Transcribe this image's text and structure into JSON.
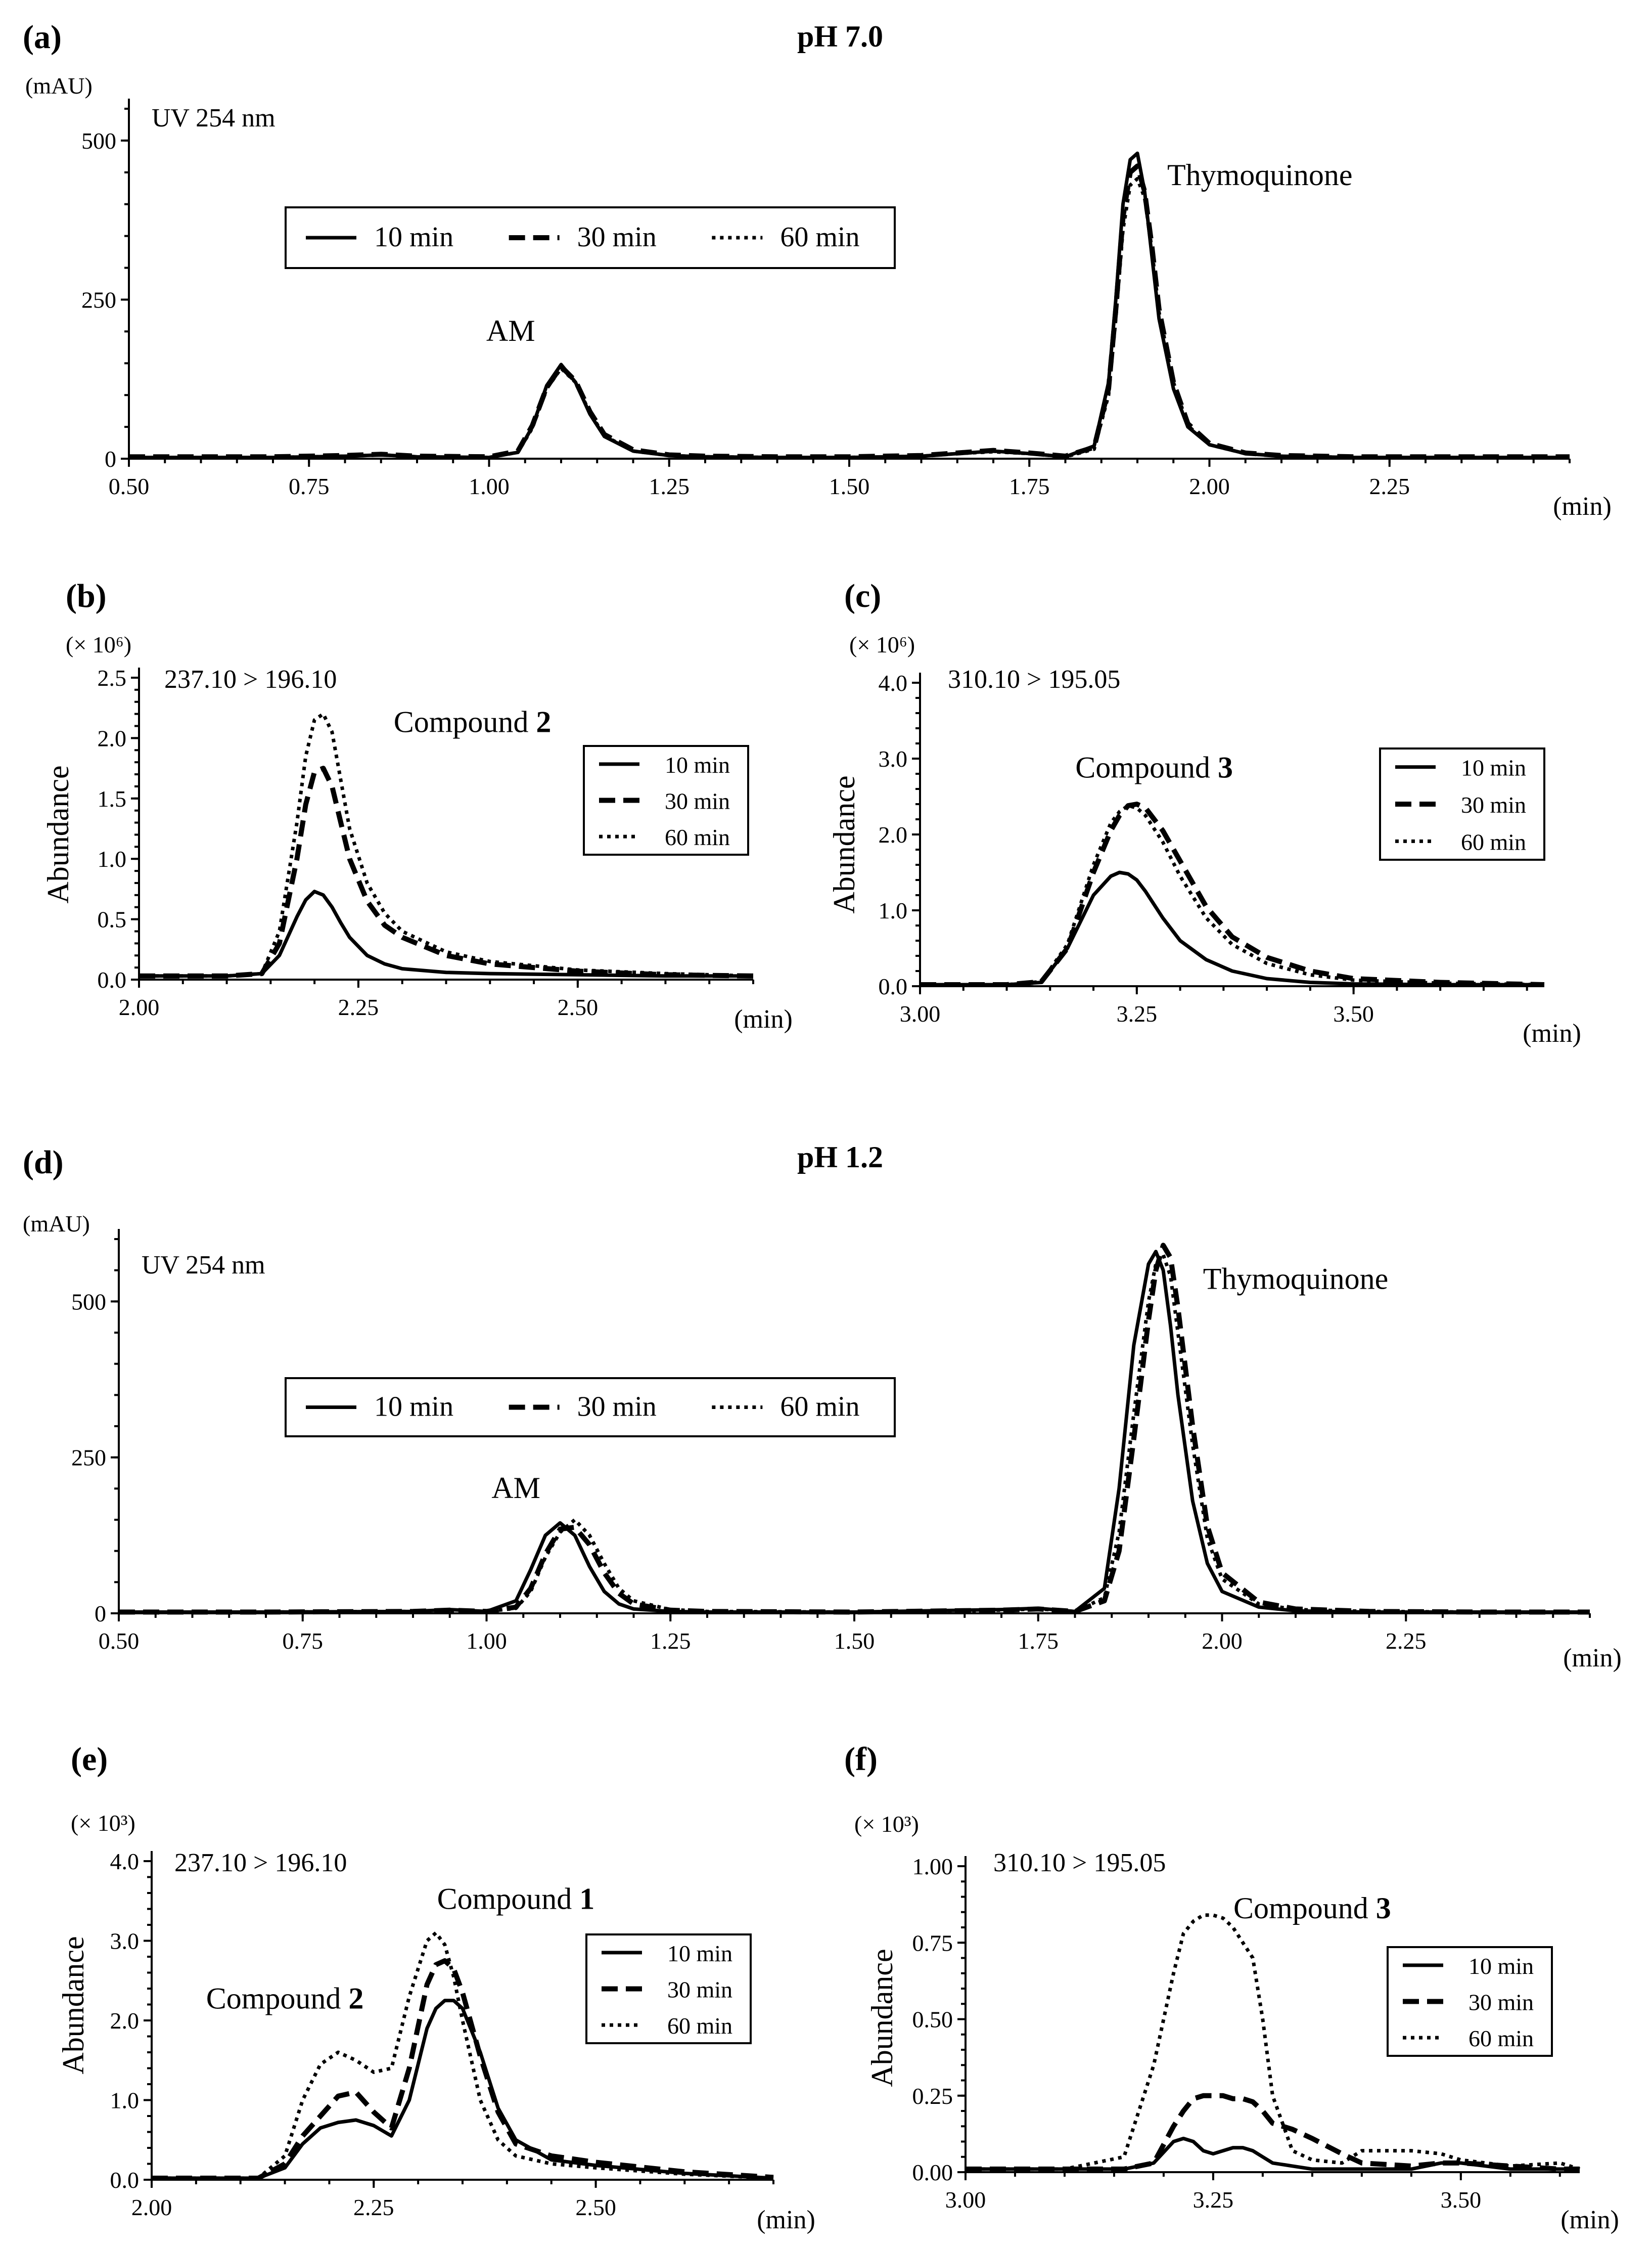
{
  "figure": {
    "section_titles": [
      "pH 7.0",
      "pH 1.2"
    ]
  },
  "chart_data": [
    {
      "id": "a",
      "panel_label": "(a)",
      "type": "line",
      "title": "pH 7.0",
      "annotation": "UV 254 nm",
      "y_unit": "(mAU)",
      "xlabel": "(min)",
      "ylabel": "",
      "xlim": [
        0.5,
        2.5
      ],
      "ylim": [
        0,
        550
      ],
      "xticks": [
        0.5,
        0.75,
        1.0,
        1.25,
        1.5,
        1.75,
        2.0,
        2.25
      ],
      "xtick_labels": [
        "0.50",
        "0.75",
        "1.00",
        "1.25",
        "1.50",
        "1.75",
        "2.00",
        "2.25"
      ],
      "yticks": [
        0,
        250,
        500
      ],
      "ytick_labels": [
        "0",
        "250",
        "500"
      ],
      "legend": [
        "10 min",
        "30 min",
        "60 min"
      ],
      "legend_layout": "horizontal",
      "peak_labels": [
        {
          "text": "AM",
          "x": 1.03,
          "y": 185
        },
        {
          "text": "Thymoquinone",
          "x": 2.07,
          "y": 430
        }
      ],
      "x": [
        0.5,
        0.6,
        0.7,
        0.8,
        0.85,
        0.9,
        1.0,
        1.04,
        1.06,
        1.08,
        1.1,
        1.12,
        1.14,
        1.16,
        1.2,
        1.25,
        1.3,
        1.4,
        1.5,
        1.6,
        1.65,
        1.7,
        1.75,
        1.8,
        1.84,
        1.86,
        1.87,
        1.88,
        1.89,
        1.9,
        1.91,
        1.92,
        1.93,
        1.95,
        1.97,
        2.0,
        2.05,
        2.1,
        2.2,
        2.3,
        2.4,
        2.5
      ],
      "series": [
        {
          "name": "10 min",
          "values": [
            2,
            2,
            2,
            4,
            6,
            3,
            2,
            10,
            50,
            115,
            148,
            120,
            70,
            35,
            12,
            5,
            3,
            2,
            2,
            4,
            8,
            12,
            8,
            3,
            20,
            120,
            250,
            400,
            470,
            480,
            420,
            320,
            220,
            110,
            50,
            22,
            8,
            4,
            2,
            2,
            2,
            2
          ]
        },
        {
          "name": "30 min",
          "values": [
            3,
            3,
            3,
            5,
            7,
            4,
            3,
            12,
            52,
            112,
            145,
            122,
            74,
            38,
            14,
            6,
            4,
            3,
            3,
            5,
            9,
            13,
            9,
            4,
            18,
            110,
            235,
            380,
            450,
            460,
            420,
            335,
            235,
            120,
            55,
            24,
            9,
            5,
            3,
            3,
            3,
            3
          ]
        },
        {
          "name": "60 min",
          "values": [
            2,
            2,
            2,
            4,
            6,
            3,
            2,
            10,
            48,
            110,
            142,
            120,
            72,
            36,
            12,
            5,
            3,
            2,
            2,
            4,
            8,
            11,
            8,
            3,
            15,
            100,
            220,
            360,
            430,
            440,
            410,
            330,
            230,
            120,
            52,
            22,
            8,
            4,
            2,
            2,
            2,
            2
          ]
        }
      ]
    },
    {
      "id": "b",
      "panel_label": "(b)",
      "type": "line",
      "title": "",
      "annotation": "237.10 > 196.10",
      "y_unit": "(× 10⁶)",
      "xlabel": "(min)",
      "ylabel": "Abundance",
      "xlim": [
        2.0,
        2.7
      ],
      "ylim": [
        0,
        2.5
      ],
      "xticks": [
        2.0,
        2.25,
        2.5
      ],
      "xtick_labels": [
        "2.00",
        "2.25",
        "2.50"
      ],
      "yticks": [
        0,
        0.5,
        1.0,
        1.5,
        2.0,
        2.5
      ],
      "ytick_labels": [
        "0.0",
        "0.5",
        "1.0",
        "1.5",
        "2.0",
        "2.5"
      ],
      "legend": [
        "10 min",
        "30 min",
        "60 min"
      ],
      "legend_layout": "vertical",
      "peak_labels": [
        {
          "text": "Compound ",
          "bold": "2",
          "x": 2.38,
          "y": 2.05
        }
      ],
      "x": [
        2.0,
        2.1,
        2.14,
        2.16,
        2.18,
        2.19,
        2.2,
        2.21,
        2.22,
        2.23,
        2.24,
        2.26,
        2.28,
        2.3,
        2.35,
        2.4,
        2.5,
        2.6,
        2.7
      ],
      "series": [
        {
          "name": "10 min",
          "values": [
            0.03,
            0.03,
            0.05,
            0.2,
            0.52,
            0.66,
            0.73,
            0.7,
            0.6,
            0.47,
            0.35,
            0.2,
            0.13,
            0.09,
            0.06,
            0.05,
            0.04,
            0.03,
            0.03
          ]
        },
        {
          "name": "30 min",
          "values": [
            0.03,
            0.03,
            0.05,
            0.3,
            1.0,
            1.45,
            1.72,
            1.75,
            1.6,
            1.3,
            1.0,
            0.65,
            0.45,
            0.35,
            0.2,
            0.13,
            0.07,
            0.04,
            0.03
          ]
        },
        {
          "name": "60 min",
          "values": [
            0.03,
            0.03,
            0.05,
            0.4,
            1.3,
            1.85,
            2.15,
            2.2,
            2.05,
            1.65,
            1.25,
            0.8,
            0.55,
            0.4,
            0.23,
            0.15,
            0.08,
            0.05,
            0.03
          ]
        }
      ]
    },
    {
      "id": "c",
      "panel_label": "(c)",
      "type": "line",
      "title": "",
      "annotation": "310.10 > 195.05",
      "y_unit": "(× 10⁶)",
      "xlabel": "(min)",
      "ylabel": "Abundance",
      "xlim": [
        3.0,
        3.72
      ],
      "ylim": [
        0,
        4.0
      ],
      "xticks": [
        3.0,
        3.25,
        3.5
      ],
      "xtick_labels": [
        "3.00",
        "3.25",
        "3.50"
      ],
      "yticks": [
        0,
        1.0,
        2.0,
        3.0,
        4.0
      ],
      "ytick_labels": [
        "0.0",
        "1.0",
        "2.0",
        "3.0",
        "4.0"
      ],
      "legend": [
        "10 min",
        "30 min",
        "60 min"
      ],
      "legend_layout": "vertical",
      "peak_labels": [
        {
          "text": "Compound ",
          "bold": "3",
          "x": 3.27,
          "y": 2.75
        }
      ],
      "x": [
        3.0,
        3.1,
        3.14,
        3.17,
        3.2,
        3.22,
        3.23,
        3.24,
        3.25,
        3.26,
        3.28,
        3.3,
        3.33,
        3.36,
        3.4,
        3.45,
        3.5,
        3.6,
        3.72
      ],
      "series": [
        {
          "name": "10 min",
          "values": [
            0.02,
            0.02,
            0.05,
            0.5,
            1.2,
            1.45,
            1.5,
            1.48,
            1.4,
            1.25,
            0.9,
            0.6,
            0.35,
            0.2,
            0.1,
            0.05,
            0.03,
            0.02,
            0.02
          ]
        },
        {
          "name": "30 min",
          "values": [
            0.02,
            0.02,
            0.06,
            0.5,
            1.5,
            2.05,
            2.25,
            2.38,
            2.4,
            2.35,
            2.05,
            1.65,
            1.05,
            0.65,
            0.38,
            0.2,
            0.1,
            0.05,
            0.02
          ]
        },
        {
          "name": "60 min",
          "values": [
            0.02,
            0.02,
            0.06,
            0.55,
            1.6,
            2.15,
            2.3,
            2.38,
            2.35,
            2.25,
            1.9,
            1.45,
            0.9,
            0.55,
            0.3,
            0.15,
            0.08,
            0.04,
            0.02
          ]
        }
      ]
    },
    {
      "id": "d",
      "panel_label": "(d)",
      "type": "line",
      "title": "pH 1.2",
      "annotation": "UV 254 nm",
      "y_unit": "(mAU)",
      "xlabel": "(min)",
      "ylabel": "",
      "xlim": [
        0.5,
        2.5
      ],
      "ylim": [
        0,
        600
      ],
      "xticks": [
        0.5,
        0.75,
        1.0,
        1.25,
        1.5,
        1.75,
        2.0,
        2.25
      ],
      "xtick_labels": [
        "0.50",
        "0.75",
        "1.00",
        "1.25",
        "1.50",
        "1.75",
        "2.00",
        "2.25"
      ],
      "yticks": [
        0,
        250,
        500
      ],
      "ytick_labels": [
        "0",
        "250",
        "500"
      ],
      "legend": [
        "10 min",
        "30 min",
        "60 min"
      ],
      "legend_layout": "horizontal",
      "peak_labels": [
        {
          "text": "AM",
          "x": 1.04,
          "y": 185
        },
        {
          "text": "Thymoquinone",
          "x": 2.1,
          "y": 520
        }
      ],
      "x": [
        0.5,
        0.7,
        0.9,
        0.95,
        1.0,
        1.04,
        1.06,
        1.08,
        1.1,
        1.12,
        1.14,
        1.16,
        1.18,
        1.2,
        1.25,
        1.3,
        1.5,
        1.7,
        1.75,
        1.8,
        1.84,
        1.86,
        1.88,
        1.9,
        1.91,
        1.92,
        1.93,
        1.94,
        1.96,
        1.98,
        2.0,
        2.05,
        2.1,
        2.2,
        2.35,
        2.5
      ],
      "series": [
        {
          "name": "10 min",
          "values": [
            2,
            2,
            3,
            6,
            3,
            20,
            70,
            125,
            145,
            125,
            75,
            35,
            15,
            7,
            3,
            2,
            2,
            6,
            8,
            3,
            40,
            200,
            430,
            560,
            580,
            550,
            460,
            350,
            180,
            80,
            35,
            10,
            4,
            2,
            2,
            2
          ]
        },
        {
          "name": "30 min",
          "values": [
            2,
            2,
            3,
            5,
            3,
            10,
            40,
            95,
            135,
            138,
            110,
            65,
            32,
            15,
            5,
            3,
            2,
            5,
            7,
            3,
            20,
            100,
            280,
            470,
            550,
            590,
            570,
            490,
            300,
            140,
            65,
            18,
            7,
            3,
            2,
            2
          ]
        },
        {
          "name": "60 min",
          "values": [
            2,
            2,
            3,
            4,
            3,
            8,
            35,
            90,
            130,
            150,
            125,
            80,
            40,
            20,
            6,
            3,
            2,
            5,
            7,
            3,
            25,
            130,
            320,
            500,
            560,
            575,
            540,
            450,
            270,
            120,
            55,
            15,
            6,
            3,
            2,
            2
          ]
        }
      ]
    },
    {
      "id": "e",
      "panel_label": "(e)",
      "type": "line",
      "title": "",
      "annotation": "237.10 > 196.10",
      "y_unit": "(× 10³)",
      "xlabel": "(min)",
      "ylabel": "Abundance",
      "xlim": [
        2.0,
        2.7
      ],
      "ylim": [
        0,
        4.0
      ],
      "xticks": [
        2.0,
        2.25,
        2.5
      ],
      "xtick_labels": [
        "2.00",
        "2.25",
        "2.50"
      ],
      "yticks": [
        0,
        1.0,
        2.0,
        3.0,
        4.0
      ],
      "ytick_labels": [
        "0.0",
        "1.0",
        "2.0",
        "3.0",
        "4.0"
      ],
      "legend": [
        "10 min",
        "30 min",
        "60 min"
      ],
      "legend_layout": "vertical",
      "peak_labels": [
        {
          "text": "Compound ",
          "bold": "1",
          "x": 2.41,
          "y": 3.4
        },
        {
          "text": "Compound ",
          "bold": "2",
          "x": 2.15,
          "y": 2.15
        }
      ],
      "x": [
        2.0,
        2.12,
        2.15,
        2.17,
        2.19,
        2.21,
        2.23,
        2.25,
        2.27,
        2.29,
        2.31,
        2.32,
        2.33,
        2.34,
        2.35,
        2.37,
        2.39,
        2.41,
        2.45,
        2.5,
        2.6,
        2.7
      ],
      "series": [
        {
          "name": "10 min",
          "values": [
            0.02,
            0.02,
            0.15,
            0.45,
            0.65,
            0.72,
            0.75,
            0.68,
            0.55,
            1.0,
            1.9,
            2.15,
            2.25,
            2.25,
            2.15,
            1.6,
            0.9,
            0.5,
            0.25,
            0.18,
            0.08,
            0.02
          ]
        },
        {
          "name": "30 min",
          "values": [
            0.02,
            0.02,
            0.2,
            0.55,
            0.8,
            1.05,
            1.1,
            0.85,
            0.65,
            1.4,
            2.45,
            2.7,
            2.75,
            2.65,
            2.35,
            1.55,
            0.85,
            0.45,
            0.3,
            0.22,
            0.1,
            0.03
          ]
        },
        {
          "name": "60 min",
          "values": [
            0.02,
            0.02,
            0.3,
            1.0,
            1.45,
            1.6,
            1.5,
            1.35,
            1.4,
            2.3,
            3.0,
            3.1,
            2.95,
            2.55,
            2.0,
            1.0,
            0.5,
            0.3,
            0.2,
            0.15,
            0.07,
            0.02
          ]
        }
      ]
    },
    {
      "id": "f",
      "panel_label": "(f)",
      "type": "line",
      "title": "",
      "annotation": "310.10 > 195.05",
      "y_unit": "(× 10³)",
      "xlabel": "(min)",
      "ylabel": "Abundance",
      "xlim": [
        3.0,
        3.62
      ],
      "ylim": [
        0,
        1.0
      ],
      "xticks": [
        3.0,
        3.25,
        3.5
      ],
      "xtick_labels": [
        "3.00",
        "3.25",
        "3.50"
      ],
      "yticks": [
        0,
        0.25,
        0.5,
        0.75,
        1.0
      ],
      "ytick_labels": [
        "0.00",
        "0.25",
        "0.50",
        "0.75",
        "1.00"
      ],
      "legend": [
        "10 min",
        "30 min",
        "60 min"
      ],
      "legend_layout": "vertical",
      "peak_labels": [
        {
          "text": "Compound ",
          "bold": "3",
          "x": 3.35,
          "y": 0.83
        }
      ],
      "x": [
        3.0,
        3.1,
        3.16,
        3.19,
        3.21,
        3.22,
        3.23,
        3.24,
        3.25,
        3.26,
        3.27,
        3.28,
        3.29,
        3.3,
        3.31,
        3.33,
        3.35,
        3.38,
        3.4,
        3.45,
        3.48,
        3.5,
        3.55,
        3.6,
        3.62
      ],
      "series": [
        {
          "name": "10 min",
          "values": [
            0.01,
            0.01,
            0.01,
            0.03,
            0.1,
            0.11,
            0.1,
            0.07,
            0.06,
            0.07,
            0.08,
            0.08,
            0.07,
            0.05,
            0.03,
            0.02,
            0.01,
            0.01,
            0.01,
            0.01,
            0.03,
            0.03,
            0.01,
            0.01,
            0.01
          ]
        },
        {
          "name": "30 min",
          "values": [
            0.01,
            0.01,
            0.01,
            0.03,
            0.15,
            0.2,
            0.24,
            0.25,
            0.25,
            0.25,
            0.24,
            0.24,
            0.23,
            0.2,
            0.16,
            0.14,
            0.11,
            0.06,
            0.03,
            0.02,
            0.03,
            0.03,
            0.02,
            0.01,
            0.01
          ]
        },
        {
          "name": "60 min",
          "values": [
            0.01,
            0.01,
            0.05,
            0.35,
            0.65,
            0.78,
            0.82,
            0.84,
            0.84,
            0.83,
            0.8,
            0.75,
            0.7,
            0.5,
            0.25,
            0.07,
            0.04,
            0.03,
            0.07,
            0.07,
            0.06,
            0.04,
            0.02,
            0.03,
            0.01
          ]
        }
      ]
    }
  ]
}
